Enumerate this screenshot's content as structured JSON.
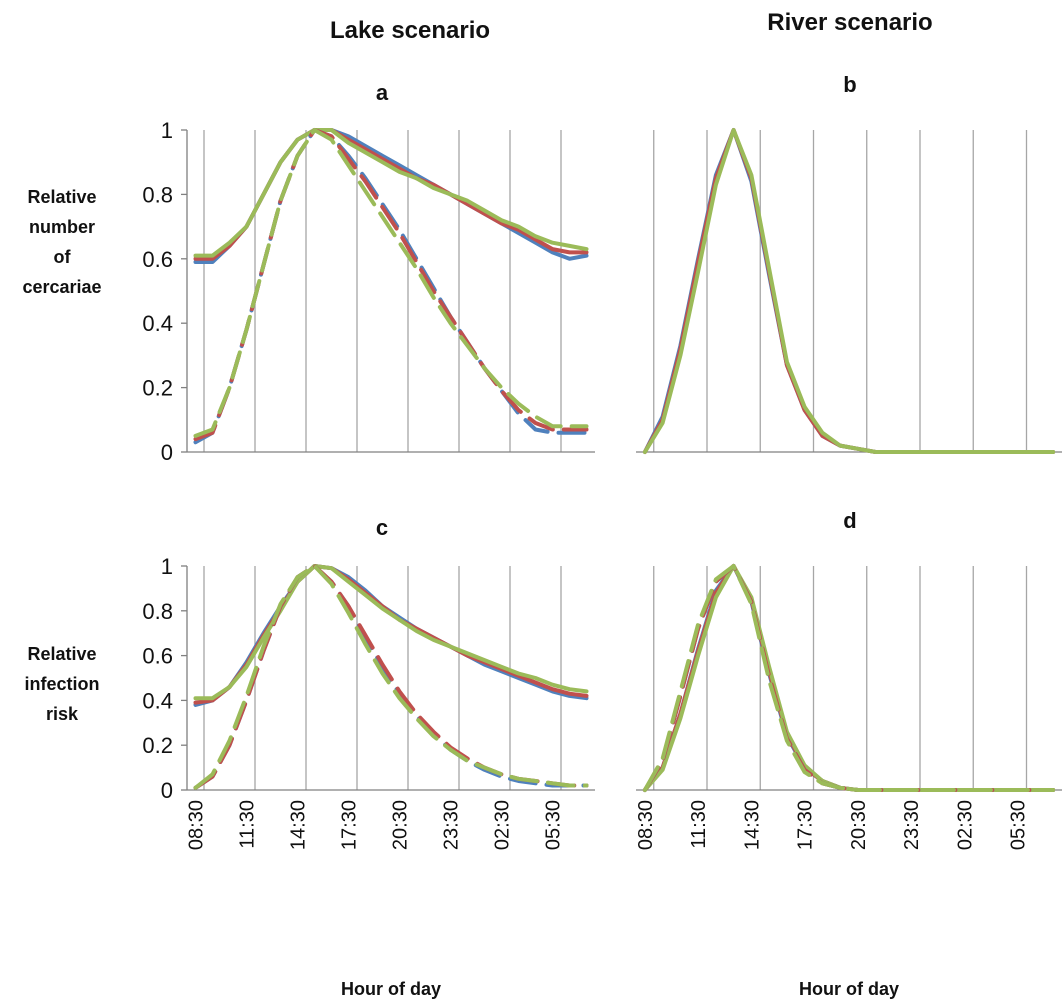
{
  "figure": {
    "column_titles": [
      "Lake scenario",
      "River scenario"
    ],
    "colors": {
      "blue": "#4f81bd",
      "red": "#c0504d",
      "green": "#9bbb59",
      "grid": "#a6a6a6",
      "axis": "#808080"
    }
  },
  "chart_data": [
    {
      "type": "line",
      "label": "a",
      "ylabel": "Relative number of cercariae",
      "xlabel": "",
      "ylim": [
        0,
        1
      ],
      "yticks": [
        "0",
        "0.2",
        "0.4",
        "0.6",
        "0.8",
        "1"
      ],
      "xticks": [
        "08:30",
        "11:30",
        "14:30",
        "17:30",
        "20:30",
        "23:30",
        "02:30",
        "05:30"
      ],
      "x": [
        "08:30",
        "09:30",
        "10:30",
        "11:30",
        "12:30",
        "13:30",
        "14:30",
        "15:30",
        "16:30",
        "17:30",
        "18:30",
        "19:30",
        "20:30",
        "21:30",
        "22:30",
        "23:30",
        "00:30",
        "01:30",
        "02:30",
        "03:30",
        "04:30",
        "05:30",
        "06:30",
        "07:30"
      ],
      "series": [
        {
          "color": "blue",
          "dash": false,
          "values": [
            0.59,
            0.59,
            0.64,
            0.7,
            0.8,
            0.9,
            0.97,
            1.0,
            1.0,
            0.98,
            0.95,
            0.92,
            0.89,
            0.86,
            0.83,
            0.8,
            0.77,
            0.74,
            0.71,
            0.68,
            0.65,
            0.62,
            0.6,
            0.61
          ]
        },
        {
          "color": "red",
          "dash": false,
          "values": [
            0.6,
            0.6,
            0.64,
            0.7,
            0.8,
            0.9,
            0.97,
            1.0,
            1.0,
            0.97,
            0.94,
            0.91,
            0.88,
            0.85,
            0.83,
            0.8,
            0.77,
            0.74,
            0.71,
            0.69,
            0.66,
            0.63,
            0.62,
            0.62
          ]
        },
        {
          "color": "green",
          "dash": false,
          "values": [
            0.61,
            0.61,
            0.65,
            0.7,
            0.8,
            0.9,
            0.97,
            1.0,
            1.0,
            0.96,
            0.93,
            0.9,
            0.87,
            0.85,
            0.82,
            0.8,
            0.78,
            0.75,
            0.72,
            0.7,
            0.67,
            0.65,
            0.64,
            0.63
          ]
        },
        {
          "color": "blue",
          "dash": true,
          "values": [
            0.03,
            0.06,
            0.2,
            0.38,
            0.58,
            0.78,
            0.92,
            1.0,
            0.98,
            0.92,
            0.85,
            0.77,
            0.69,
            0.6,
            0.51,
            0.42,
            0.34,
            0.26,
            0.19,
            0.12,
            0.07,
            0.06,
            0.06,
            0.06
          ]
        },
        {
          "color": "red",
          "dash": true,
          "values": [
            0.04,
            0.06,
            0.2,
            0.38,
            0.58,
            0.78,
            0.92,
            1.0,
            0.98,
            0.91,
            0.84,
            0.76,
            0.68,
            0.59,
            0.5,
            0.42,
            0.34,
            0.26,
            0.19,
            0.13,
            0.09,
            0.07,
            0.07,
            0.07
          ]
        },
        {
          "color": "green",
          "dash": true,
          "values": [
            0.05,
            0.07,
            0.2,
            0.38,
            0.58,
            0.78,
            0.92,
            1.0,
            0.97,
            0.89,
            0.81,
            0.73,
            0.65,
            0.57,
            0.48,
            0.4,
            0.33,
            0.26,
            0.2,
            0.15,
            0.11,
            0.08,
            0.08,
            0.08
          ]
        }
      ]
    },
    {
      "type": "line",
      "label": "b",
      "ylabel": "",
      "xlabel": "",
      "ylim": [
        0,
        1
      ],
      "yticks": [],
      "xticks": [
        "08:30",
        "11:30",
        "14:30",
        "17:30",
        "20:30",
        "23:30",
        "02:30",
        "05:30"
      ],
      "x": [
        "08:30",
        "09:30",
        "10:30",
        "11:30",
        "12:30",
        "13:30",
        "14:30",
        "15:30",
        "16:30",
        "17:30",
        "18:30",
        "19:30",
        "20:30",
        "21:30",
        "22:30",
        "23:30",
        "00:30",
        "01:30",
        "02:30",
        "03:30",
        "04:30",
        "05:30",
        "06:30",
        "07:30"
      ],
      "series": [
        {
          "color": "blue",
          "dash": false,
          "values": [
            0.0,
            0.11,
            0.33,
            0.6,
            0.86,
            1.0,
            0.84,
            0.55,
            0.27,
            0.13,
            0.05,
            0.02,
            0.01,
            0.0,
            0.0,
            0.0,
            0.0,
            0.0,
            0.0,
            0.0,
            0.0,
            0.0,
            0.0,
            0.0
          ]
        },
        {
          "color": "red",
          "dash": false,
          "values": [
            0.0,
            0.1,
            0.32,
            0.59,
            0.85,
            1.0,
            0.85,
            0.56,
            0.27,
            0.13,
            0.05,
            0.02,
            0.01,
            0.0,
            0.0,
            0.0,
            0.0,
            0.0,
            0.0,
            0.0,
            0.0,
            0.0,
            0.0,
            0.0
          ]
        },
        {
          "color": "green",
          "dash": false,
          "values": [
            0.0,
            0.09,
            0.3,
            0.56,
            0.83,
            1.0,
            0.86,
            0.57,
            0.28,
            0.14,
            0.06,
            0.02,
            0.01,
            0.0,
            0.0,
            0.0,
            0.0,
            0.0,
            0.0,
            0.0,
            0.0,
            0.0,
            0.0,
            0.0
          ]
        }
      ]
    },
    {
      "type": "line",
      "label": "c",
      "ylabel": "Relative infection risk",
      "xlabel": "Hour of day",
      "ylim": [
        0,
        1
      ],
      "yticks": [
        "0",
        "0.2",
        "0.4",
        "0.6",
        "0.8",
        "1"
      ],
      "xticks": [
        "08:30",
        "11:30",
        "14:30",
        "17:30",
        "20:30",
        "23:30",
        "02:30",
        "05:30"
      ],
      "x": [
        "08:30",
        "09:30",
        "10:30",
        "11:30",
        "12:30",
        "13:30",
        "14:30",
        "15:30",
        "16:30",
        "17:30",
        "18:30",
        "19:30",
        "20:30",
        "21:30",
        "22:30",
        "23:30",
        "00:30",
        "01:30",
        "02:30",
        "03:30",
        "04:30",
        "05:30",
        "06:30",
        "07:30"
      ],
      "series": [
        {
          "color": "blue",
          "dash": false,
          "values": [
            0.38,
            0.4,
            0.46,
            0.57,
            0.7,
            0.82,
            0.93,
            1.0,
            0.99,
            0.95,
            0.89,
            0.82,
            0.77,
            0.72,
            0.68,
            0.64,
            0.6,
            0.56,
            0.53,
            0.5,
            0.47,
            0.44,
            0.42,
            0.41
          ]
        },
        {
          "color": "red",
          "dash": false,
          "values": [
            0.39,
            0.4,
            0.46,
            0.56,
            0.69,
            0.81,
            0.93,
            1.0,
            0.99,
            0.94,
            0.88,
            0.82,
            0.76,
            0.72,
            0.68,
            0.64,
            0.6,
            0.57,
            0.54,
            0.51,
            0.48,
            0.45,
            0.43,
            0.42
          ]
        },
        {
          "color": "green",
          "dash": false,
          "values": [
            0.41,
            0.41,
            0.46,
            0.55,
            0.68,
            0.8,
            0.93,
            1.0,
            0.99,
            0.93,
            0.87,
            0.81,
            0.76,
            0.71,
            0.67,
            0.64,
            0.61,
            0.58,
            0.55,
            0.52,
            0.5,
            0.47,
            0.45,
            0.44
          ]
        },
        {
          "color": "blue",
          "dash": true,
          "values": [
            0.01,
            0.06,
            0.2,
            0.4,
            0.62,
            0.82,
            0.95,
            1.0,
            0.93,
            0.82,
            0.68,
            0.55,
            0.43,
            0.33,
            0.25,
            0.18,
            0.13,
            0.09,
            0.06,
            0.04,
            0.03,
            0.02,
            0.02,
            0.02
          ]
        },
        {
          "color": "red",
          "dash": true,
          "values": [
            0.01,
            0.06,
            0.2,
            0.4,
            0.62,
            0.82,
            0.95,
            1.0,
            0.93,
            0.82,
            0.69,
            0.56,
            0.44,
            0.34,
            0.26,
            0.19,
            0.14,
            0.1,
            0.07,
            0.05,
            0.04,
            0.03,
            0.02,
            0.02
          ]
        },
        {
          "color": "green",
          "dash": true,
          "values": [
            0.01,
            0.07,
            0.22,
            0.42,
            0.64,
            0.83,
            0.95,
            1.0,
            0.92,
            0.79,
            0.65,
            0.52,
            0.41,
            0.32,
            0.24,
            0.18,
            0.13,
            0.1,
            0.07,
            0.05,
            0.04,
            0.03,
            0.02,
            0.02
          ]
        }
      ]
    },
    {
      "type": "line",
      "label": "d",
      "ylabel": "",
      "xlabel": "Hour of day",
      "ylim": [
        0,
        1
      ],
      "yticks": [],
      "xticks": [
        "08:30",
        "11:30",
        "14:30",
        "17:30",
        "20:30",
        "23:30",
        "02:30",
        "05:30"
      ],
      "x": [
        "08:30",
        "09:30",
        "10:30",
        "11:30",
        "12:30",
        "13:30",
        "14:30",
        "15:30",
        "16:30",
        "17:30",
        "18:30",
        "19:30",
        "20:30",
        "21:30",
        "22:30",
        "23:30",
        "00:30",
        "01:30",
        "02:30",
        "03:30",
        "04:30",
        "05:30",
        "06:30",
        "07:30"
      ],
      "series": [
        {
          "color": "blue",
          "dash": false,
          "values": [
            0.0,
            0.1,
            0.34,
            0.63,
            0.89,
            1.0,
            0.84,
            0.52,
            0.24,
            0.1,
            0.04,
            0.01,
            0.0,
            0.0,
            0.0,
            0.0,
            0.0,
            0.0,
            0.0,
            0.0,
            0.0,
            0.0,
            0.0,
            0.0
          ]
        },
        {
          "color": "red",
          "dash": false,
          "values": [
            0.0,
            0.1,
            0.34,
            0.62,
            0.88,
            1.0,
            0.85,
            0.53,
            0.25,
            0.1,
            0.04,
            0.01,
            0.0,
            0.0,
            0.0,
            0.0,
            0.0,
            0.0,
            0.0,
            0.0,
            0.0,
            0.0,
            0.0,
            0.0
          ]
        },
        {
          "color": "green",
          "dash": false,
          "values": [
            0.0,
            0.09,
            0.32,
            0.6,
            0.86,
            1.0,
            0.86,
            0.55,
            0.26,
            0.11,
            0.04,
            0.01,
            0.0,
            0.0,
            0.0,
            0.0,
            0.0,
            0.0,
            0.0,
            0.0,
            0.0,
            0.0,
            0.0,
            0.0
          ]
        },
        {
          "color": "blue",
          "dash": true,
          "values": [
            0.0,
            0.13,
            0.42,
            0.72,
            0.93,
            1.0,
            0.84,
            0.5,
            0.23,
            0.09,
            0.03,
            0.01,
            0.0,
            0.0,
            0.0,
            0.0,
            0.0,
            0.0,
            0.0,
            0.0,
            0.0,
            0.0,
            0.0,
            0.0
          ]
        },
        {
          "color": "red",
          "dash": true,
          "values": [
            0.0,
            0.13,
            0.42,
            0.72,
            0.93,
            1.0,
            0.84,
            0.51,
            0.23,
            0.09,
            0.03,
            0.01,
            0.0,
            0.0,
            0.0,
            0.0,
            0.0,
            0.0,
            0.0,
            0.0,
            0.0,
            0.0,
            0.0,
            0.0
          ]
        },
        {
          "color": "green",
          "dash": true,
          "values": [
            0.0,
            0.14,
            0.44,
            0.74,
            0.94,
            1.0,
            0.83,
            0.49,
            0.22,
            0.08,
            0.03,
            0.01,
            0.0,
            0.0,
            0.0,
            0.0,
            0.0,
            0.0,
            0.0,
            0.0,
            0.0,
            0.0,
            0.0,
            0.0
          ]
        }
      ]
    }
  ]
}
